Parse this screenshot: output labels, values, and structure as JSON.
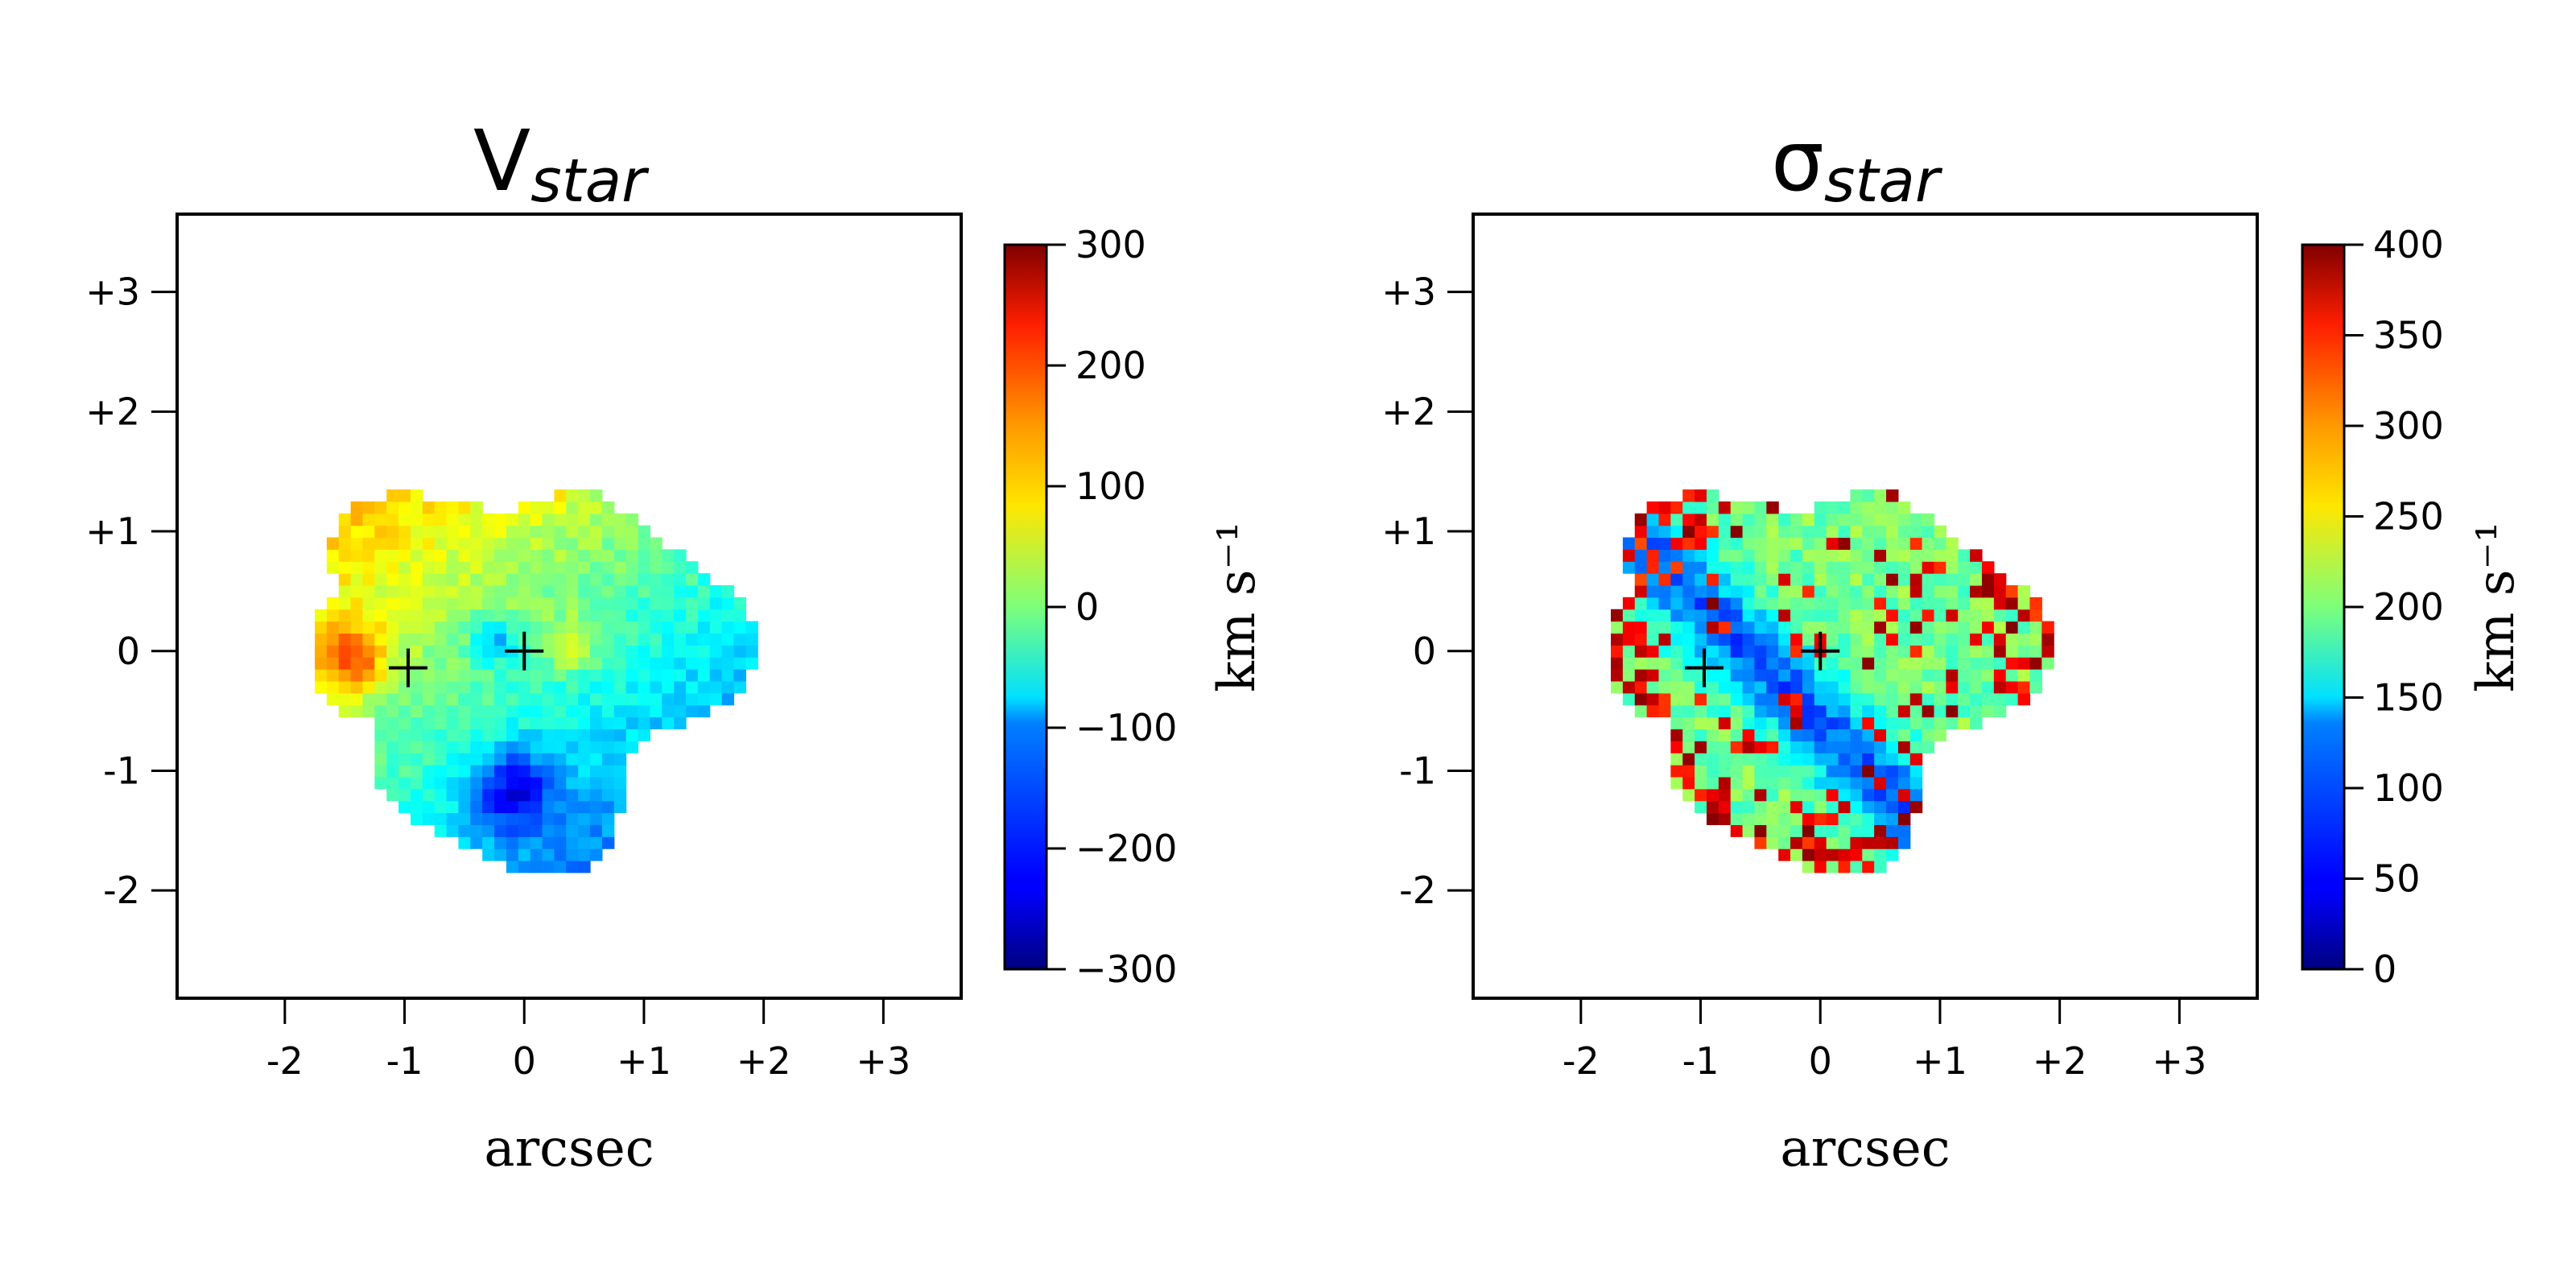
{
  "chart_data": [
    {
      "type": "heatmap",
      "title_main": "V",
      "title_sub": "star",
      "xlabel": "arcsec",
      "ylabel": "",
      "xlim": [
        -2.9,
        3.65
      ],
      "ylim": [
        -2.9,
        3.65
      ],
      "xticks": [
        -2,
        -1,
        0,
        1,
        2,
        3
      ],
      "xtick_labels": [
        "-2",
        "-1",
        "0",
        "+1",
        "+2",
        "+3"
      ],
      "yticks": [
        -2,
        -1,
        0,
        1,
        2,
        3
      ],
      "ytick_labels": [
        "-2",
        "-1",
        "0",
        "+1",
        "+2",
        "+3"
      ],
      "colormap": "jet",
      "colorbar": {
        "min": -300,
        "max": 300,
        "ticks": [
          -300,
          -200,
          -100,
          0,
          100,
          200,
          300
        ],
        "tick_labels": [
          "−300",
          "−200",
          "−100",
          "0",
          "100",
          "200",
          "300"
        ],
        "label": "km s⁻¹"
      },
      "markers": [
        {
          "x": -0.97,
          "y": -0.14
        },
        {
          "x": 0.0,
          "y": 0.0
        }
      ],
      "field": "velocity"
    },
    {
      "type": "heatmap",
      "title_main": "σ",
      "title_sub": "star",
      "xlabel": "arcsec",
      "ylabel": "",
      "xlim": [
        -2.9,
        3.65
      ],
      "ylim": [
        -2.9,
        3.65
      ],
      "xticks": [
        -2,
        -1,
        0,
        1,
        2,
        3
      ],
      "xtick_labels": [
        "-2",
        "-1",
        "0",
        "+1",
        "+2",
        "+3"
      ],
      "yticks": [
        -2,
        -1,
        0,
        1,
        2,
        3
      ],
      "ytick_labels": [
        "-2",
        "-1",
        "0",
        "+1",
        "+2",
        "+3"
      ],
      "colormap": "jet",
      "colorbar": {
        "min": 0,
        "max": 400,
        "ticks": [
          0,
          50,
          100,
          150,
          200,
          250,
          300,
          350,
          400
        ],
        "tick_labels": [
          "0",
          "50",
          "100",
          "150",
          "200",
          "250",
          "300",
          "350",
          "400"
        ],
        "label": "km s⁻¹"
      },
      "markers": [
        {
          "x": -0.97,
          "y": -0.14
        },
        {
          "x": 0.0,
          "y": 0.0
        }
      ],
      "field": "dispersion"
    }
  ]
}
